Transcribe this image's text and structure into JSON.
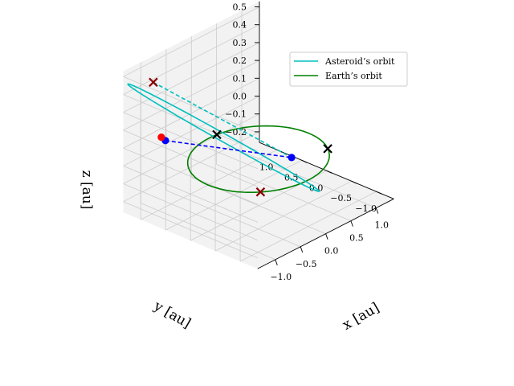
{
  "chart_data": {
    "type": "line",
    "projection": "3d",
    "xlabel": "x [au]",
    "ylabel": "y [au]",
    "zlabel": "z [au]",
    "xlim": [
      -1.35,
      1.35
    ],
    "ylim": [
      -1.35,
      1.35
    ],
    "zlim": [
      -0.26,
      0.53
    ],
    "x_ticks": [
      "−1.0",
      "−0.5",
      "0.0",
      "0.5",
      "1.0"
    ],
    "y_ticks": [
      "1.0",
      "0.5",
      "0.0",
      "−0.5",
      "−1.0"
    ],
    "z_ticks": [
      "0.5",
      "0.4",
      "0.3",
      "0.2",
      "0.1",
      "0.0",
      "−0.1",
      "−0.2"
    ],
    "grid": true,
    "legend_position": "top-right",
    "colors": {
      "asteroid": "#00bfbf",
      "earth": "#008000",
      "transfer": "#0000ff",
      "cross": "#000000",
      "red_cross": "#8b0000",
      "red_point": "#ff0000",
      "pane": "#f2f2f2",
      "grid": "#cccccc"
    },
    "series": [
      {
        "name": "Asteroid’s orbit",
        "kind": "ellipse",
        "center": [
          -0.35,
          0.35,
          0.13
        ],
        "a": 1.35,
        "b": 0.14,
        "tilt_deg": 14,
        "rotation_deg": 45
      },
      {
        "name": "Earth’s orbit",
        "kind": "circle",
        "radius": 1.0,
        "z": 0.0
      }
    ],
    "dashed_lines": [
      {
        "name": "transfer-leg",
        "color": "transfer",
        "from": [
          -0.93,
          0.93,
          0.13
        ],
        "to": [
          0.33,
          -0.33,
          0.0
        ]
      },
      {
        "name": "asteroid-chord",
        "color": "asteroid",
        "from": [
          -1.05,
          1.05,
          0.46
        ],
        "to": [
          0.33,
          -0.33,
          0.0
        ]
      }
    ],
    "markers": [
      {
        "name": "cross-asteroid-top",
        "symbol": "x",
        "color": "red_cross",
        "at": [
          -1.05,
          1.05,
          0.46
        ]
      },
      {
        "name": "cross-earth-back",
        "symbol": "x",
        "color": "red_cross",
        "at": [
          -0.68,
          -0.73,
          0.0
        ]
      },
      {
        "name": "cross-earth-left",
        "symbol": "x",
        "color": "cross",
        "at": [
          0.15,
          0.99,
          0.0
        ]
      },
      {
        "name": "cross-earth-front",
        "symbol": "x",
        "color": "cross",
        "at": [
          0.84,
          -0.54,
          0.0
        ]
      },
      {
        "name": "point-departure",
        "symbol": "o",
        "color": "transfer",
        "at": [
          0.33,
          -0.33,
          0.0
        ]
      },
      {
        "name": "point-arrival",
        "symbol": "o",
        "color": "transfer",
        "at": [
          -0.93,
          0.93,
          0.13
        ]
      },
      {
        "name": "point-red",
        "symbol": "o",
        "color": "red_point",
        "at": [
          -0.97,
          0.97,
          0.15
        ]
      }
    ]
  }
}
